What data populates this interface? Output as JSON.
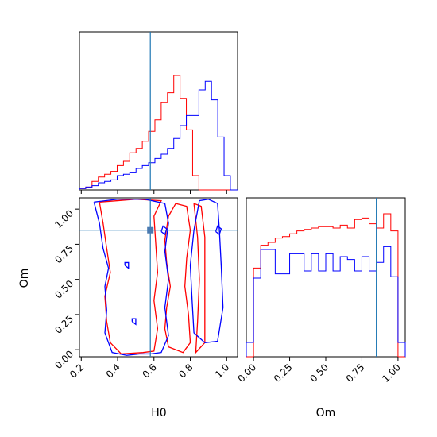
{
  "colors": {
    "series_a": "#ff0000",
    "series_b": "#0000ff",
    "truth": "#1f77b4"
  },
  "labels": {
    "h0": "H0",
    "om": "Om"
  },
  "truth": {
    "H0": 0.58,
    "Om": 0.85
  },
  "chart_data": [
    {
      "type": "histogram",
      "panel": "H0 marginal",
      "xlim": [
        0.19,
        1.06
      ],
      "x_ticks": [
        "0.2",
        "0.4",
        "0.6",
        "0.8",
        "1.0"
      ],
      "y_ticks": [],
      "bin_edges": [
        0.19,
        0.2246,
        0.2592,
        0.2938,
        0.3284,
        0.363,
        0.3976,
        0.4322,
        0.4668,
        0.5014,
        0.536,
        0.5706,
        0.6052,
        0.6398,
        0.6744,
        0.709,
        0.7436,
        0.7782,
        0.8128,
        0.8474,
        0.882,
        0.9166,
        0.9512,
        0.9858,
        1.0204,
        1.06
      ],
      "series": [
        {
          "color": "red",
          "values": [
            0.01,
            0.02,
            0.06,
            0.09,
            0.11,
            0.13,
            0.17,
            0.2,
            0.26,
            0.29,
            0.34,
            0.41,
            0.49,
            0.61,
            0.68,
            0.8,
            0.64,
            0.42,
            0.1,
            0.0,
            0.0,
            0.0,
            0.0,
            0.0,
            0.0
          ]
        },
        {
          "color": "blue",
          "values": [
            0.01,
            0.02,
            0.03,
            0.05,
            0.06,
            0.07,
            0.1,
            0.11,
            0.12,
            0.15,
            0.17,
            0.19,
            0.22,
            0.25,
            0.29,
            0.36,
            0.45,
            0.52,
            0.52,
            0.7,
            0.76,
            0.63,
            0.37,
            0.1,
            0.0
          ]
        }
      ]
    },
    {
      "type": "contour",
      "panel": "H0 vs Om",
      "xlabel": "H0",
      "ylabel": "Om",
      "xlim": [
        0.19,
        1.06
      ],
      "ylim": [
        -0.05,
        1.08
      ],
      "x_ticks": [
        "0.2",
        "0.4",
        "0.6",
        "0.8",
        "1.0"
      ],
      "y_ticks": [
        "0.00",
        "0.25",
        "0.50",
        "0.75",
        "1.00"
      ],
      "series": [
        {
          "color": "red",
          "contours": [
            [
              [
                0.72,
                1.04
              ],
              [
                0.68,
                0.95
              ],
              [
                0.66,
                0.78
              ],
              [
                0.67,
                0.62
              ],
              [
                0.69,
                0.45
              ],
              [
                0.67,
                0.3
              ],
              [
                0.66,
                0.15
              ],
              [
                0.68,
                0.02
              ],
              [
                0.76,
                -0.02
              ],
              [
                0.8,
                0.05
              ],
              [
                0.79,
                0.25
              ],
              [
                0.77,
                0.45
              ],
              [
                0.78,
                0.65
              ],
              [
                0.8,
                0.85
              ],
              [
                0.78,
                1.02
              ],
              [
                0.72,
                1.04
              ]
            ],
            [
              [
                0.3,
                1.05
              ],
              [
                0.32,
                0.9
              ],
              [
                0.34,
                0.72
              ],
              [
                0.36,
                0.55
              ],
              [
                0.33,
                0.38
              ],
              [
                0.34,
                0.2
              ],
              [
                0.36,
                0.05
              ],
              [
                0.42,
                -0.03
              ],
              [
                0.54,
                -0.02
              ],
              [
                0.6,
                -0.01
              ],
              [
                0.62,
                0.15
              ],
              [
                0.6,
                0.35
              ],
              [
                0.62,
                0.55
              ],
              [
                0.61,
                0.75
              ],
              [
                0.6,
                0.95
              ],
              [
                0.64,
                1.06
              ],
              [
                0.5,
                1.07
              ],
              [
                0.4,
                1.06
              ],
              [
                0.3,
                1.05
              ]
            ],
            [
              [
                0.82,
                1.04
              ],
              [
                0.84,
                0.8
              ],
              [
                0.85,
                0.5
              ],
              [
                0.84,
                0.2
              ],
              [
                0.83,
                -0.02
              ],
              [
                0.88,
                0.05
              ],
              [
                0.88,
                0.4
              ],
              [
                0.88,
                0.8
              ],
              [
                0.86,
                1.02
              ],
              [
                0.82,
                1.04
              ]
            ]
          ]
        },
        {
          "color": "blue",
          "contours": [
            [
              [
                0.27,
                1.05
              ],
              [
                0.3,
                0.9
              ],
              [
                0.32,
                0.72
              ],
              [
                0.35,
                0.58
              ],
              [
                0.33,
                0.45
              ],
              [
                0.34,
                0.28
              ],
              [
                0.33,
                0.12
              ],
              [
                0.37,
                -0.02
              ],
              [
                0.45,
                -0.04
              ],
              [
                0.52,
                -0.03
              ],
              [
                0.58,
                -0.03
              ],
              [
                0.64,
                -0.02
              ],
              [
                0.68,
                0.1
              ],
              [
                0.66,
                0.3
              ],
              [
                0.68,
                0.5
              ],
              [
                0.66,
                0.7
              ],
              [
                0.68,
                0.9
              ],
              [
                0.66,
                1.04
              ],
              [
                0.55,
                1.07
              ],
              [
                0.4,
                1.07
              ],
              [
                0.27,
                1.05
              ]
            ],
            [
              [
                0.85,
                1.06
              ],
              [
                0.82,
                0.85
              ],
              [
                0.8,
                0.6
              ],
              [
                0.81,
                0.35
              ],
              [
                0.82,
                0.12
              ],
              [
                0.88,
                0.05
              ],
              [
                0.95,
                0.06
              ],
              [
                0.98,
                0.3
              ],
              [
                0.97,
                0.6
              ],
              [
                0.96,
                0.85
              ],
              [
                0.95,
                1.04
              ],
              [
                0.9,
                1.07
              ],
              [
                0.85,
                1.06
              ]
            ],
            [
              [
                0.94,
                0.84
              ],
              [
                0.96,
                0.82
              ],
              [
                0.97,
                0.86
              ],
              [
                0.95,
                0.88
              ],
              [
                0.94,
                0.84
              ]
            ],
            [
              [
                0.64,
                0.84
              ],
              [
                0.66,
                0.82
              ],
              [
                0.67,
                0.86
              ],
              [
                0.65,
                0.88
              ],
              [
                0.64,
                0.84
              ]
            ],
            [
              [
                0.44,
                0.6
              ],
              [
                0.46,
                0.58
              ],
              [
                0.46,
                0.62
              ],
              [
                0.44,
                0.62
              ],
              [
                0.44,
                0.6
              ]
            ],
            [
              [
                0.48,
                0.2
              ],
              [
                0.5,
                0.18
              ],
              [
                0.5,
                0.22
              ],
              [
                0.48,
                0.22
              ],
              [
                0.48,
                0.2
              ]
            ]
          ]
        }
      ]
    },
    {
      "type": "histogram",
      "panel": "Om marginal",
      "xlabel": "Om",
      "xlim": [
        -0.05,
        1.05
      ],
      "x_ticks": [
        "0.00",
        "0.25",
        "0.50",
        "0.75",
        "1.00"
      ],
      "y_ticks": [],
      "bin_edges": [
        -0.05,
        0.0,
        0.05,
        0.1,
        0.15,
        0.2,
        0.25,
        0.3,
        0.35,
        0.4,
        0.45,
        0.5,
        0.55,
        0.6,
        0.65,
        0.7,
        0.75,
        0.8,
        0.85,
        0.9,
        0.95,
        1.0,
        1.05
      ],
      "series": [
        {
          "color": "red",
          "values": [
            0.0,
            0.62,
            0.78,
            0.8,
            0.83,
            0.84,
            0.86,
            0.88,
            0.89,
            0.9,
            0.91,
            0.91,
            0.9,
            0.92,
            0.9,
            0.96,
            0.97,
            0.93,
            0.9,
            1.0,
            0.88,
            0.0
          ]
        },
        {
          "color": "blue",
          "values": [
            0.1,
            0.55,
            0.75,
            0.75,
            0.58,
            0.58,
            0.72,
            0.72,
            0.6,
            0.72,
            0.6,
            0.72,
            0.6,
            0.7,
            0.68,
            0.6,
            0.7,
            0.6,
            0.66,
            0.77,
            0.56,
            0.1
          ]
        }
      ]
    }
  ]
}
